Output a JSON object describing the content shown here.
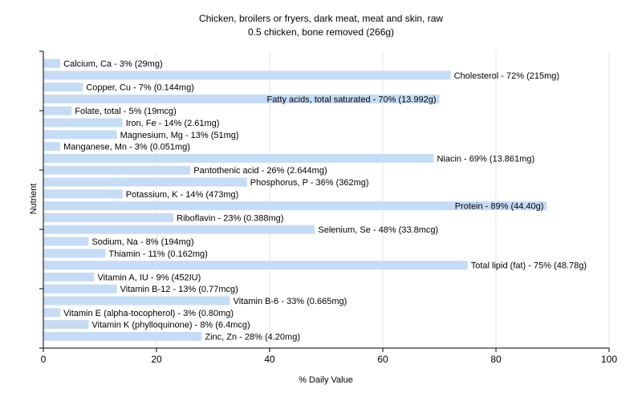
{
  "chart_data": {
    "type": "bar",
    "orientation": "horizontal",
    "title": "Chicken, broilers or fryers, dark meat, meat and skin, raw",
    "subtitle": "0.5 chicken, bone removed (266g)",
    "xlabel": "% Daily Value",
    "ylabel": "Nutrient",
    "xlim": [
      0,
      100
    ],
    "xticks": [
      "0",
      "20",
      "40",
      "60",
      "80",
      "100"
    ],
    "grid": true,
    "bar_color": "#c6dcf5",
    "categories": [
      "Calcium, Ca",
      "Cholesterol",
      "Copper, Cu",
      "Fatty acids, total saturated",
      "Folate, total",
      "Iron, Fe",
      "Magnesium, Mg",
      "Manganese, Mn",
      "Niacin",
      "Pantothenic acid",
      "Phosphorus, P",
      "Potassium, K",
      "Protein",
      "Riboflavin",
      "Selenium, Se",
      "Sodium, Na",
      "Thiamin",
      "Total lipid (fat)",
      "Vitamin A, IU",
      "Vitamin B-12",
      "Vitamin B-6",
      "Vitamin E (alpha-tocopherol)",
      "Vitamin K (phylloquinone)",
      "Zinc, Zn"
    ],
    "values": [
      3,
      72,
      7,
      70,
      5,
      14,
      13,
      3,
      69,
      26,
      36,
      14,
      89,
      23,
      48,
      8,
      11,
      75,
      9,
      13,
      33,
      3,
      8,
      28
    ],
    "labels": [
      "Calcium, Ca - 3% (29mg)",
      "Cholesterol - 72% (215mg)",
      "Copper, Cu - 7% (0.144mg)",
      "Fatty acids, total saturated - 70% (13.992g)",
      "Folate, total - 5% (19mcg)",
      "Iron, Fe - 14% (2.61mg)",
      "Magnesium, Mg - 13% (51mg)",
      "Manganese, Mn - 3% (0.051mg)",
      "Niacin - 69% (13.861mg)",
      "Pantothenic acid - 26% (2.644mg)",
      "Phosphorus, P - 36% (362mg)",
      "Potassium, K - 14% (473mg)",
      "Protein - 89% (44.40g)",
      "Riboflavin - 23% (0.388mg)",
      "Selenium, Se - 48% (33.8mcg)",
      "Sodium, Na - 8% (194mg)",
      "Thiamin - 11% (0.162mg)",
      "Total lipid (fat) - 75% (48.78g)",
      "Vitamin A, IU - 9% (452IU)",
      "Vitamin B-12 - 13% (0.77mcg)",
      "Vitamin B-6 - 33% (0.665mg)",
      "Vitamin E (alpha-tocopherol) - 3% (0.80mg)",
      "Vitamin K (phylloquinone) - 8% (6.4mcg)",
      "Zinc, Zn - 28% (4.20mg)"
    ]
  }
}
